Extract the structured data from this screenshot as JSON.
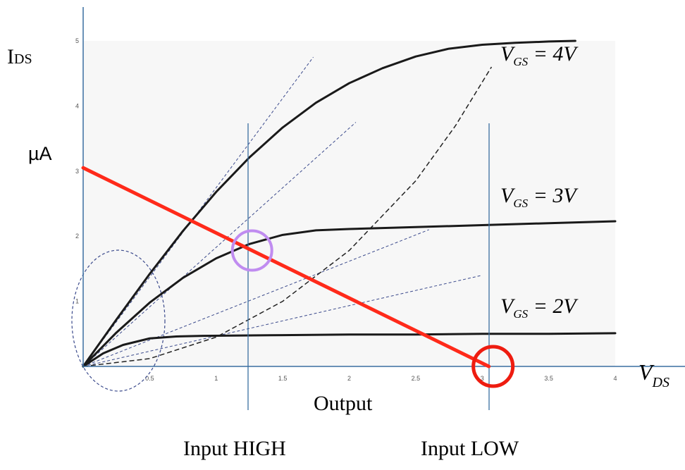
{
  "labels": {
    "y_axis_symbol": "I",
    "y_axis_sub": "DS",
    "y_unit": "µA",
    "x_axis_symbol": "V",
    "x_axis_sub": "DS",
    "output": "Output",
    "input_high": "Input HIGH",
    "input_low": "Input LOW"
  },
  "curve_labels": [
    {
      "prefix": "V",
      "sub": "GS",
      "eq": " = 4V"
    },
    {
      "prefix": "V",
      "sub": "GS",
      "eq": " = 3V"
    },
    {
      "prefix": "V",
      "sub": "GS",
      "eq": " = 2V"
    }
  ],
  "colors": {
    "curve": "#1a1a1a",
    "load_line": "#ff2a1a",
    "axis": "#3a6fa0",
    "guide": "#3a6fa0",
    "dashed": "#3b4a8c",
    "marker_high": "#c08cf0",
    "marker_low": "#ee1c10",
    "plot_bg": "#f7f7f7"
  },
  "chart_data": {
    "type": "line",
    "x_ticks": [
      "0.5",
      "1",
      "1.5",
      "2",
      "2.5",
      "3",
      "3.5",
      "4"
    ],
    "y_ticks": [
      "1",
      "2",
      "3",
      "4",
      "5"
    ],
    "xlim": [
      0,
      4
    ],
    "ylim": [
      0,
      5
    ],
    "series": [
      {
        "label_ref": 0,
        "x": [
          0,
          0.25,
          0.5,
          0.75,
          1.0,
          1.25,
          1.5,
          1.75,
          2.0,
          2.25,
          2.5,
          2.75,
          3.0,
          3.25,
          3.5,
          3.7
        ],
        "y": [
          0,
          0.72,
          1.42,
          2.08,
          2.68,
          3.21,
          3.67,
          4.05,
          4.35,
          4.58,
          4.76,
          4.88,
          4.94,
          4.97,
          4.99,
          5.0
        ]
      },
      {
        "label_ref": 1,
        "x": [
          0,
          0.25,
          0.5,
          0.75,
          1.0,
          1.25,
          1.5,
          1.75,
          2.0,
          2.5,
          3.0,
          3.5,
          4.0
        ],
        "y": [
          0,
          0.52,
          0.98,
          1.36,
          1.66,
          1.88,
          2.02,
          2.09,
          2.11,
          2.14,
          2.17,
          2.2,
          2.23
        ]
      },
      {
        "label_ref": 2,
        "x": [
          0,
          0.15,
          0.3,
          0.5,
          0.7,
          0.9,
          1.5,
          2.0,
          2.5,
          3.0,
          3.5,
          4.0
        ],
        "y": [
          0,
          0.2,
          0.33,
          0.43,
          0.46,
          0.47,
          0.48,
          0.49,
          0.49,
          0.5,
          0.5,
          0.51
        ]
      }
    ],
    "load_line": {
      "x": [
        0,
        3.05
      ],
      "y": [
        3.05,
        0
      ]
    },
    "dashed_lines": [
      {
        "x": [
          0,
          1.73
        ],
        "y": [
          0,
          4.75
        ]
      },
      {
        "x": [
          0,
          2.05
        ],
        "y": [
          0,
          3.75
        ]
      },
      {
        "x": [
          0,
          2.6
        ],
        "y": [
          0,
          2.1
        ]
      },
      {
        "x": [
          0,
          3.0
        ],
        "y": [
          0,
          1.4
        ]
      }
    ],
    "saturation_boundary": {
      "x": [
        0,
        0.5,
        1.0,
        1.5,
        2.0,
        2.5,
        2.8,
        3.07
      ],
      "y": [
        0,
        0.12,
        0.45,
        1.0,
        1.78,
        2.85,
        3.7,
        4.6
      ]
    },
    "operating_points": [
      {
        "label": "Input HIGH",
        "x": 1.27,
        "y": 1.78
      },
      {
        "label": "Input LOW",
        "x": 3.05,
        "y": 0
      }
    ]
  }
}
